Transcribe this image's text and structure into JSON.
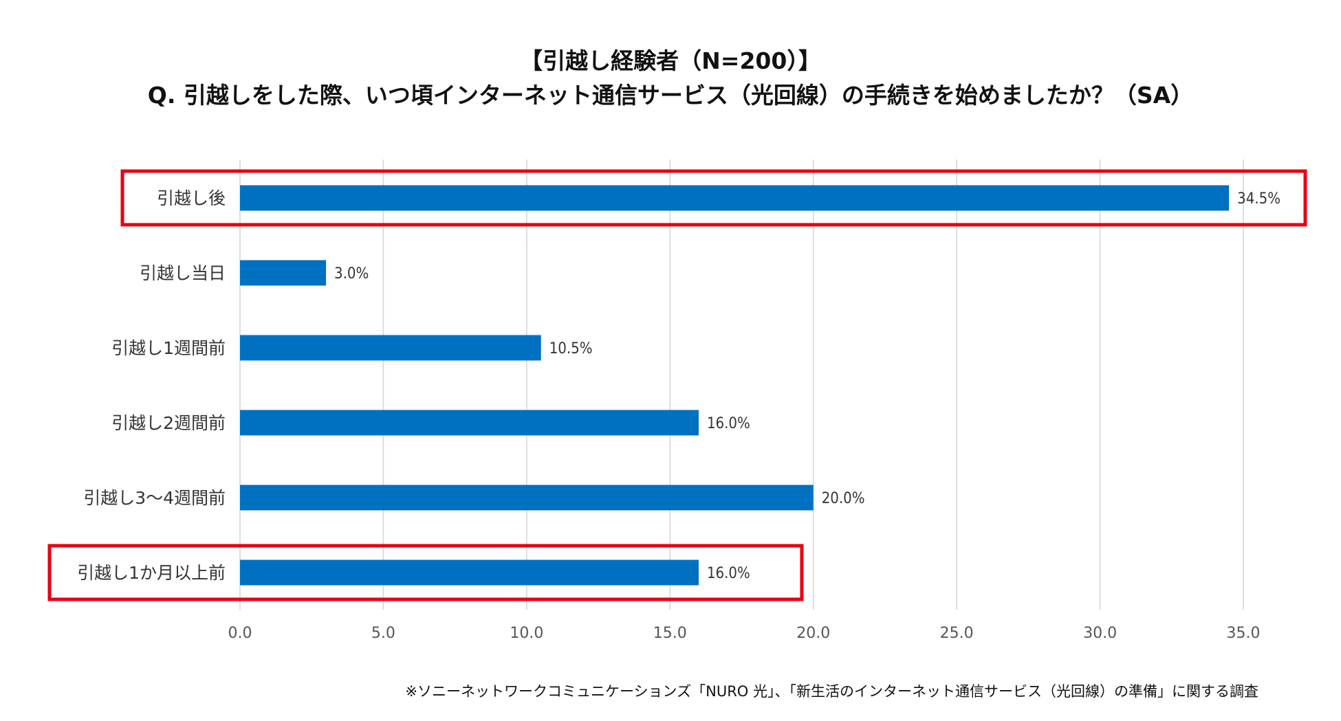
{
  "chart_data": {
    "type": "bar",
    "orientation": "horizontal",
    "title": "【引越し経験者（N=200）】",
    "subtitle": "Q. 引越しをした際、いつ頃インターネット通信サービス（光回線）の手続きを始めましたか？（SA）",
    "categories": [
      "引越し後",
      "引越し当日",
      "引越し1週間前",
      "引越し2週間前",
      "引越し3～4週間前",
      "引越し1か月以上前"
    ],
    "values": [
      34.5,
      3.0,
      10.5,
      16.0,
      20.0,
      16.0
    ],
    "value_labels": [
      "34.5%",
      "3.0%",
      "10.5%",
      "16.0%",
      "20.0%",
      "16.0%"
    ],
    "highlighted_categories": [
      "引越し後",
      "引越し1か月以上前"
    ],
    "xlim": [
      0,
      35
    ],
    "xticks": [
      "0.0",
      "5.0",
      "10.0",
      "15.0",
      "20.0",
      "25.0",
      "30.0",
      "35.0"
    ],
    "grid": true,
    "xlabel": "",
    "ylabel": "",
    "source": "※ソニーネットワークコミュニケーションズ「NURO 光」、「新生活のインターネット通信サービス（光回線）の準備」に関する調査"
  },
  "colors": {
    "bar": "#0070C0",
    "highlight": "#E60012",
    "grid": "#D4D4D4"
  }
}
